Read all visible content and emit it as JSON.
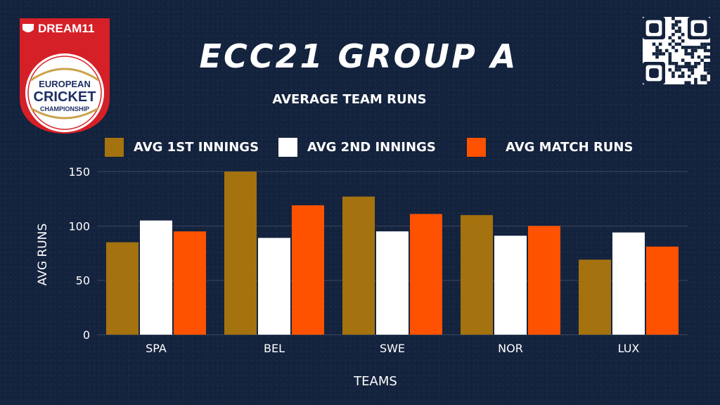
{
  "logo": {
    "brand": "DREAM11",
    "line1": "EUROPEAN",
    "line2": "CRICKET",
    "line3": "CHAMPIONSHIP"
  },
  "qr_icon": "qr-code-icon",
  "colors": {
    "background": "#13223d",
    "series1": "#a4720f",
    "series2": "#ffffff",
    "series3": "#ff5200",
    "logo_red": "#d62027"
  },
  "chart_data": {
    "type": "bar",
    "title": "ECC21 GROUP A",
    "subtitle": "AVERAGE TEAM RUNS",
    "xlabel": "TEAMS",
    "ylabel": "AVG RUNS",
    "categories": [
      "SPA",
      "BEL",
      "SWE",
      "NOR",
      "LUX"
    ],
    "series": [
      {
        "name": "AVG 1ST INNINGS",
        "values": [
          85,
          150,
          127,
          110,
          69
        ]
      },
      {
        "name": "AVG 2ND INNINGS",
        "values": [
          105,
          89,
          95,
          91,
          94
        ]
      },
      {
        "name": "AVG MATCH RUNS",
        "values": [
          95,
          119,
          111,
          100,
          81
        ]
      }
    ],
    "ylim": [
      0,
      150
    ],
    "yticks": [
      0,
      50,
      100,
      150
    ],
    "grid": true,
    "legend_position": "top"
  }
}
